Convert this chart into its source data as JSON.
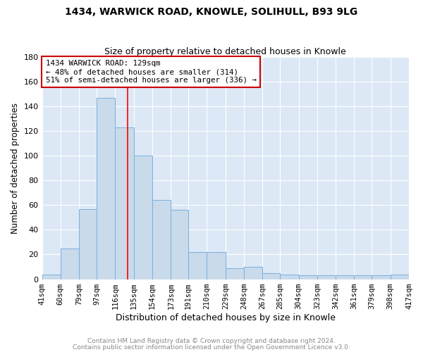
{
  "title": "1434, WARWICK ROAD, KNOWLE, SOLIHULL, B93 9LG",
  "subtitle": "Size of property relative to detached houses in Knowle",
  "xlabel": "Distribution of detached houses by size in Knowle",
  "ylabel": "Number of detached properties",
  "bin_edges": [
    41,
    60,
    79,
    97,
    116,
    135,
    154,
    173,
    191,
    210,
    229,
    248,
    267,
    285,
    304,
    323,
    342,
    361,
    379,
    398,
    417
  ],
  "bar_heights": [
    4,
    25,
    57,
    147,
    123,
    100,
    64,
    56,
    22,
    22,
    9,
    10,
    5,
    4,
    3,
    3,
    3,
    3,
    3,
    4
  ],
  "bar_color": "#c9daea",
  "bar_edgecolor": "#7aafe0",
  "red_line_x": 129,
  "ylim": [
    0,
    180
  ],
  "yticks": [
    0,
    20,
    40,
    60,
    80,
    100,
    120,
    140,
    160,
    180
  ],
  "annotation_title": "1434 WARWICK ROAD: 129sqm",
  "annotation_line1": "← 48% of detached houses are smaller (314)",
  "annotation_line2": "51% of semi-detached houses are larger (336) →",
  "annotation_box_facecolor": "#ffffff",
  "annotation_box_edgecolor": "#cc0000",
  "footer1": "Contains HM Land Registry data © Crown copyright and database right 2024.",
  "footer2": "Contains public sector information licensed under the Open Government Licence v3.0.",
  "fig_bg_color": "#ffffff",
  "plot_bg_color": "#dce8f5",
  "grid_color": "#ffffff",
  "title_fontsize": 10,
  "subtitle_fontsize": 9,
  "ylabel_fontsize": 8.5,
  "xlabel_fontsize": 9,
  "tick_fontsize": 7.5,
  "footer_fontsize": 6.5,
  "footer_color": "#888888"
}
